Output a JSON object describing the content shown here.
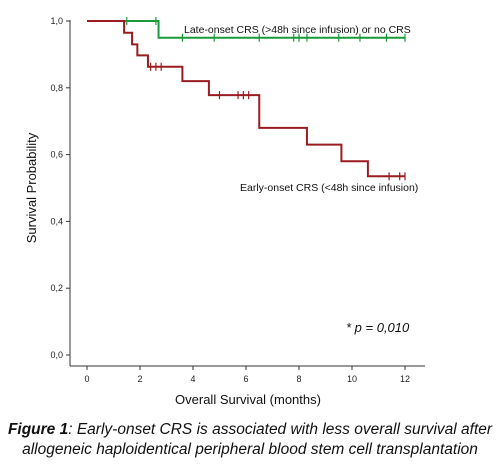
{
  "chart_data": {
    "type": "line",
    "step": true,
    "xlabel": "Overall Survival (months)",
    "ylabel": "Survival Probability",
    "xlim": [
      0,
      12
    ],
    "ylim": [
      0,
      1.0
    ],
    "xticks": [
      "0",
      "2",
      "4",
      "6",
      "8",
      "10",
      "12"
    ],
    "yticks": [
      "0,0",
      "0,2",
      "0,4",
      "0,6",
      "0,8",
      "1,0"
    ],
    "grid": false,
    "series": [
      {
        "name": "Late-onset CRS (>48h since infusion) or no CRS",
        "color": "#1a9a3a",
        "steps": [
          [
            0,
            1.0
          ],
          [
            2.7,
            0.95
          ],
          [
            12,
            0.95
          ]
        ],
        "censored": [
          [
            1.5,
            1.0
          ],
          [
            2.6,
            1.0
          ],
          [
            3.6,
            0.95
          ],
          [
            4.8,
            0.95
          ],
          [
            6.5,
            0.95
          ],
          [
            7.8,
            0.95
          ],
          [
            8.0,
            0.95
          ],
          [
            8.3,
            0.95
          ],
          [
            9.5,
            0.95
          ],
          [
            10.3,
            0.95
          ],
          [
            11.3,
            0.95
          ],
          [
            12.0,
            0.95
          ]
        ]
      },
      {
        "name": "Early-onset CRS (<48h since infusion)",
        "color": "#9b1c20",
        "steps": [
          [
            0,
            1.0
          ],
          [
            1.4,
            0.965
          ],
          [
            1.7,
            0.93
          ],
          [
            1.9,
            0.897
          ],
          [
            2.3,
            0.863
          ],
          [
            3.6,
            0.82
          ],
          [
            4.6,
            0.778
          ],
          [
            6.5,
            0.68
          ],
          [
            8.3,
            0.63
          ],
          [
            9.6,
            0.58
          ],
          [
            10.6,
            0.535
          ],
          [
            12,
            0.535
          ]
        ],
        "censored": [
          [
            2.4,
            0.863
          ],
          [
            2.6,
            0.863
          ],
          [
            2.8,
            0.863
          ],
          [
            5.0,
            0.778
          ],
          [
            5.7,
            0.778
          ],
          [
            5.9,
            0.778
          ],
          [
            6.1,
            0.778
          ],
          [
            11.4,
            0.535
          ],
          [
            11.8,
            0.535
          ],
          [
            12.0,
            0.535
          ]
        ]
      }
    ],
    "annotations": {
      "p_value": "* p = 0,010"
    }
  },
  "caption": {
    "label": "Figure 1",
    "text": ": Early-onset CRS is associated with less overall survival after allogeneic haploidentical peripheral blood stem cell transplantation"
  }
}
